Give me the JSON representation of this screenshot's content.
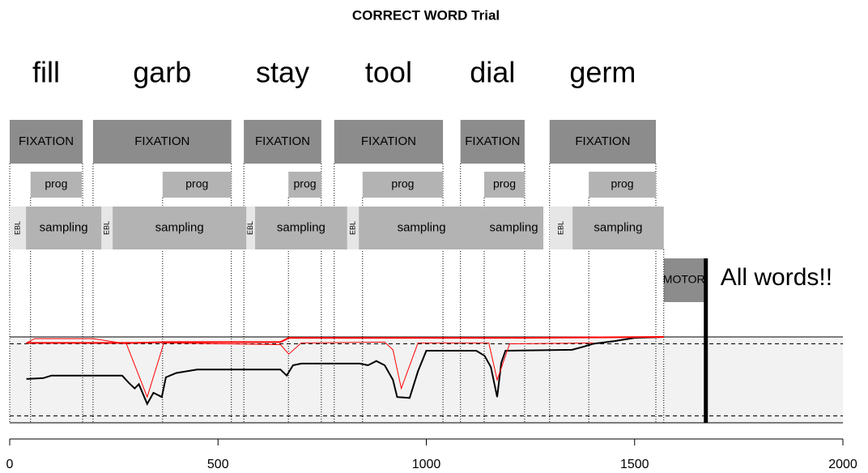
{
  "chart_data": {
    "type": "timeline",
    "title": "CORRECT WORD Trial",
    "words": [
      "fill",
      "garb",
      "stay",
      "tool",
      "dial",
      "germ"
    ],
    "xlim": [
      0,
      2000
    ],
    "xticks": [
      0,
      500,
      1000,
      1500,
      2000
    ],
    "ylim": [
      0,
      1
    ],
    "reference_lines": [
      0.08,
      0.92
    ],
    "fixations": [
      {
        "label": "FIXATION",
        "start": 0,
        "end": 175
      },
      {
        "label": "FIXATION",
        "start": 200,
        "end": 532
      },
      {
        "label": "FIXATION",
        "start": 562,
        "end": 748
      },
      {
        "label": "FIXATION",
        "start": 779,
        "end": 1040
      },
      {
        "label": "FIXATION",
        "start": 1082,
        "end": 1236
      },
      {
        "label": "FIXATION",
        "start": 1296,
        "end": 1551
      }
    ],
    "prog": [
      {
        "label": "prog",
        "start": 50,
        "end": 173
      },
      {
        "label": "prog",
        "start": 367,
        "end": 532
      },
      {
        "label": "prog",
        "start": 669,
        "end": 748
      },
      {
        "label": "prog",
        "start": 847,
        "end": 1040
      },
      {
        "label": "prog",
        "start": 1139,
        "end": 1236
      },
      {
        "label": "prog",
        "start": 1390,
        "end": 1551
      }
    ],
    "ebl": [
      {
        "label": "EBL",
        "start": 0,
        "end": 39
      },
      {
        "label": "EBL",
        "start": 220,
        "end": 247
      },
      {
        "label": "EBL",
        "start": 568,
        "end": 589
      },
      {
        "label": "EBL",
        "start": 810,
        "end": 838
      },
      {
        "label": "EBL",
        "start": 1296,
        "end": 1351
      }
    ],
    "sampling": [
      {
        "label": "sampling",
        "start": 39,
        "end": 220
      },
      {
        "label": "sampling",
        "start": 247,
        "end": 568
      },
      {
        "label": "sampling",
        "start": 589,
        "end": 810
      },
      {
        "label": "sampling",
        "start": 838,
        "end": 1139
      },
      {
        "label": "sampling",
        "start": 1139,
        "end": 1281
      },
      {
        "label": "sampling",
        "start": 1351,
        "end": 1570
      }
    ],
    "motor": {
      "label": "MOTOR",
      "start": 1570,
      "end": 1667
    },
    "response": {
      "time": 1671,
      "label": "All words!!"
    },
    "series": [
      {
        "color": "#000000",
        "width": 2,
        "x": [
          40,
          80,
          100,
          200,
          270,
          285,
          300,
          310,
          330,
          345,
          365,
          375,
          400,
          450,
          650,
          665,
          680,
          700,
          840,
          860,
          880,
          900,
          920,
          930,
          960,
          980,
          1000,
          1120,
          1140,
          1155,
          1170,
          1180,
          1190,
          1350,
          1380,
          1400,
          1450,
          1500,
          1570
        ],
        "values": [
          0.51,
          0.52,
          0.55,
          0.55,
          0.55,
          0.47,
          0.4,
          0.45,
          0.22,
          0.35,
          0.3,
          0.53,
          0.58,
          0.62,
          0.62,
          0.55,
          0.67,
          0.69,
          0.69,
          0.67,
          0.72,
          0.67,
          0.5,
          0.3,
          0.29,
          0.6,
          0.84,
          0.84,
          0.78,
          0.65,
          0.3,
          0.7,
          0.84,
          0.85,
          0.89,
          0.92,
          0.95,
          0.99,
          1.0
        ]
      },
      {
        "color": "#ff0000",
        "width": 2,
        "x": [
          40,
          300,
          380,
          650,
          670,
          1200,
          1570
        ],
        "values": [
          0.93,
          0.93,
          0.94,
          0.94,
          0.99,
          0.99,
          1.0
        ]
      },
      {
        "color": "#ff0000",
        "width": 1,
        "x": [
          40,
          60,
          200,
          280,
          330,
          370,
          650,
          670,
          700,
          900,
          920,
          940,
          980,
          1150,
          1170,
          1200,
          1400
        ],
        "values": [
          0.93,
          0.98,
          0.98,
          0.92,
          0.3,
          0.93,
          0.91,
          0.8,
          0.93,
          0.94,
          0.85,
          0.4,
          0.93,
          0.93,
          0.5,
          0.92,
          0.93
        ]
      }
    ]
  }
}
